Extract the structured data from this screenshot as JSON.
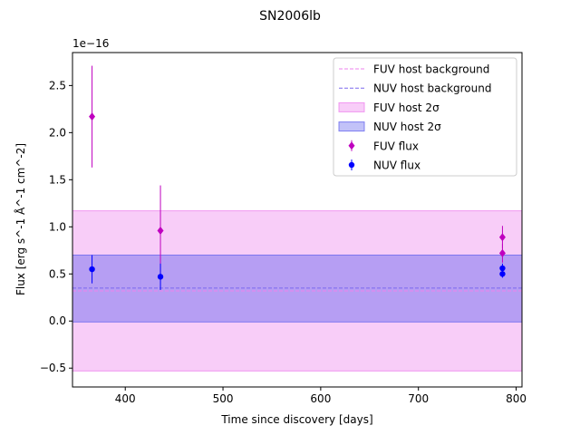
{
  "chart_data": {
    "type": "scatter",
    "title": "SN2006lb",
    "xlabel": "Time since discovery [days]",
    "ylabel": "Flux [erg s^-1 Å^-1 cm^-2]",
    "y_offset_label": "1e−16",
    "xlim": [
      346,
      806
    ],
    "ylim": [
      -0.7,
      2.85
    ],
    "x_ticks": [
      400,
      500,
      600,
      700,
      800
    ],
    "y_ticks": [
      -0.5,
      0.0,
      0.5,
      1.0,
      1.5,
      2.0,
      2.5
    ],
    "y_tick_labels": [
      "−0.5",
      "0.0",
      "0.5",
      "1.0",
      "1.5",
      "2.0",
      "2.5"
    ],
    "grid": false,
    "legend_position": "top-right",
    "colors": {
      "fuv": "#bf00bf",
      "nuv": "#0000ff",
      "fuv_line": "#ee82ee",
      "nuv_line": "#7b68ee",
      "fuv_band": "#ee82ee",
      "nuv_band": "#6666ee"
    },
    "bands": [
      {
        "name": "FUV host 2σ",
        "low": -0.53,
        "high": 1.17,
        "color_key": "fuv_band"
      },
      {
        "name": "NUV host 2σ",
        "low": -0.01,
        "high": 0.7,
        "color_key": "nuv_band"
      }
    ],
    "background_lines": [
      {
        "name": "FUV host background",
        "value": 0.32,
        "color_key": "fuv_line"
      },
      {
        "name": "NUV host background",
        "value": 0.35,
        "color_key": "nuv_line"
      }
    ],
    "series": [
      {
        "name": "FUV flux",
        "marker": "diamond",
        "color_key": "fuv",
        "points": [
          {
            "x": 366,
            "y": 2.17,
            "err": 0.54
          },
          {
            "x": 436,
            "y": 0.96,
            "err": 0.48
          },
          {
            "x": 786,
            "y": 0.89,
            "err": 0.12
          },
          {
            "x": 786,
            "y": 0.72,
            "err": 0.1
          }
        ]
      },
      {
        "name": "NUV flux",
        "marker": "circle",
        "color_key": "nuv",
        "points": [
          {
            "x": 366,
            "y": 0.55,
            "err": 0.15
          },
          {
            "x": 436,
            "y": 0.47,
            "err": 0.14
          },
          {
            "x": 786,
            "y": 0.56,
            "err": 0.05
          },
          {
            "x": 786,
            "y": 0.5,
            "err": 0.04
          }
        ]
      }
    ],
    "legend": [
      {
        "label": "FUV host background",
        "kind": "dashed",
        "color_key": "fuv_line"
      },
      {
        "label": "NUV host background",
        "kind": "dashed",
        "color_key": "nuv_line"
      },
      {
        "label": "FUV host 2σ",
        "kind": "patch",
        "color_key": "fuv_band"
      },
      {
        "label": "NUV host 2σ",
        "kind": "patch",
        "color_key": "nuv_band"
      },
      {
        "label": "FUV flux",
        "kind": "diamond",
        "color_key": "fuv"
      },
      {
        "label": "NUV flux",
        "kind": "circle",
        "color_key": "nuv"
      }
    ]
  }
}
